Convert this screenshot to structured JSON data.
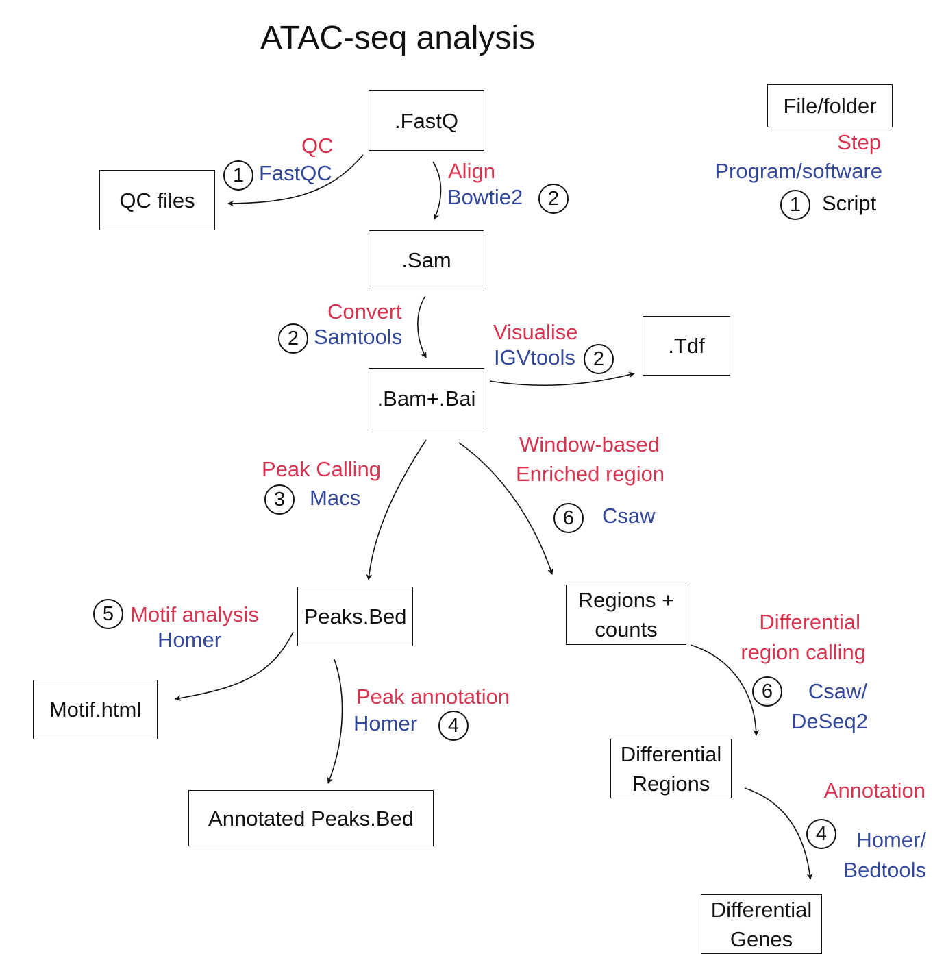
{
  "title": "ATAC-seq analysis",
  "colors": {
    "step": "#d6344f",
    "program": "#34489a",
    "file": "#111111"
  },
  "legend": {
    "file": "File/folder",
    "step": "Step",
    "program": "Program/software",
    "script_num": "1",
    "script": "Script"
  },
  "files": {
    "fastq": ".FastQ",
    "qc": "QC files",
    "sam": ".Sam",
    "bam": ".Bam+.Bai",
    "tdf": ".Tdf",
    "peaks": "Peaks.Bed",
    "regions_1": "Regions +",
    "regions_2": "counts",
    "motif": "Motif.html",
    "annotated": "Annotated Peaks.Bed",
    "diff_regions_1": "Differential",
    "diff_regions_2": "Regions",
    "diff_genes_1": "Differential",
    "diff_genes_2": "Genes"
  },
  "edges": {
    "qc": {
      "step": "QC",
      "program": "FastQC",
      "script": "1"
    },
    "align": {
      "step": "Align",
      "program": "Bowtie2",
      "script": "2"
    },
    "convert": {
      "step": "Convert",
      "program": "Samtools",
      "script": "2"
    },
    "visualise": {
      "step": "Visualise",
      "program": "IGVtools",
      "script": "2"
    },
    "peak_calling": {
      "step": "Peak Calling",
      "program": "Macs",
      "script": "3"
    },
    "window": {
      "step_1": "Window-based",
      "step_2": "Enriched region",
      "program": "Csaw",
      "script": "6"
    },
    "motif": {
      "step": "Motif analysis",
      "program": "Homer",
      "script": "5"
    },
    "peak_annotation": {
      "step": "Peak annotation",
      "program": "Homer",
      "script": "4"
    },
    "differential": {
      "step_1": "Differential",
      "step_2": "region calling",
      "program_1": "Csaw/",
      "program_2": "DeSeq2",
      "script": "6"
    },
    "annotation": {
      "step": "Annotation",
      "program_1": "Homer/",
      "program_2": "Bedtools",
      "script": "4"
    }
  }
}
